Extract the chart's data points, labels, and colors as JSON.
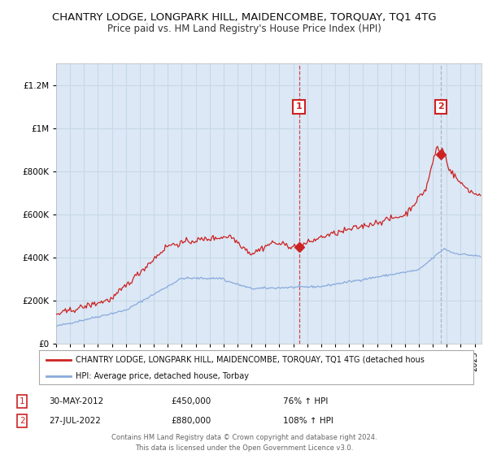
{
  "title": "CHANTRY LODGE, LONGPARK HILL, MAIDENCOMBE, TORQUAY, TQ1 4TG",
  "subtitle": "Price paid vs. HM Land Registry's House Price Index (HPI)",
  "title_fontsize": 9.5,
  "subtitle_fontsize": 8.5,
  "ylim": [
    0,
    1300000
  ],
  "xlim_start": 1995.0,
  "xlim_end": 2025.5,
  "background_color": "#ffffff",
  "plot_bg_color": "#dce8f5",
  "grid_color": "#c8d8e8",
  "sale1_date": 2012.41,
  "sale1_price": 450000,
  "sale2_date": 2022.56,
  "sale2_price": 880000,
  "red_line_color": "#cc2222",
  "blue_line_color": "#88aadd",
  "annotation_box_color": "#cc2222",
  "vline_color_1": "#cc2222",
  "vline_color_2": "#99aabb",
  "legend_label_red": "CHANTRY LODGE, LONGPARK HILL, MAIDENCOMBE, TORQUAY, TQ1 4TG (detached hous",
  "legend_label_blue": "HPI: Average price, detached house, Torbay",
  "footer1": "Contains HM Land Registry data © Crown copyright and database right 2024.",
  "footer2": "This data is licensed under the Open Government Licence v3.0.",
  "ann1_label": "1",
  "ann1_date_str": "30-MAY-2012",
  "ann1_price_str": "£450,000",
  "ann1_hpi_str": "76% ↑ HPI",
  "ann2_label": "2",
  "ann2_date_str": "27-JUL-2022",
  "ann2_price_str": "£880,000",
  "ann2_hpi_str": "108% ↑ HPI"
}
